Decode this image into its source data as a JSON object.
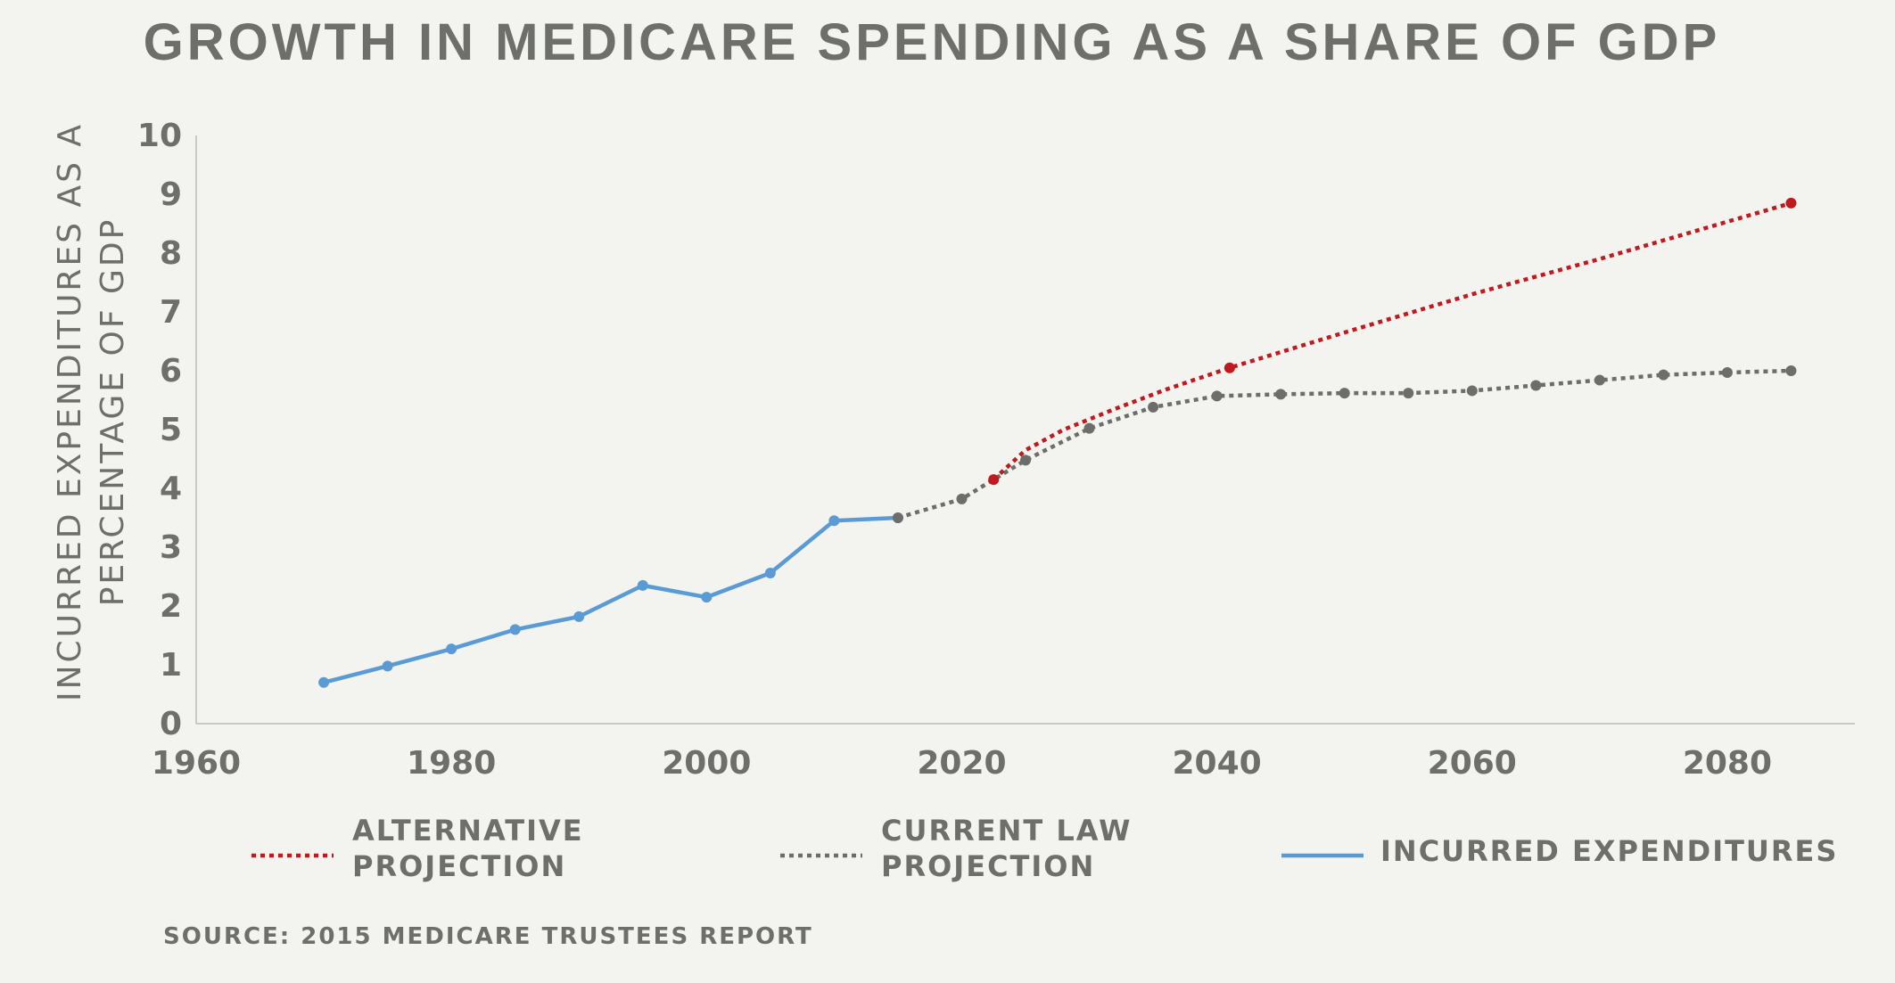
{
  "chart_data": {
    "type": "line",
    "title": "GROWTH IN MEDICARE SPENDING AS A SHARE OF GDP",
    "xlabel": "",
    "ylabel_lines": [
      "INCURRED EXPENDITURES AS A",
      "PERCENTAGE OF GDP"
    ],
    "xlim": [
      1960,
      2090
    ],
    "ylim": [
      0,
      10
    ],
    "x_ticks": [
      1960,
      1980,
      2000,
      2020,
      2040,
      2060,
      2080
    ],
    "y_ticks": [
      0,
      1,
      2,
      3,
      4,
      5,
      6,
      7,
      8,
      9,
      10
    ],
    "grid": false,
    "legend_position": "bottom",
    "series": [
      {
        "name": "INCURRED EXPENDITURES",
        "legend_lines": [
          "INCURRED EXPENDITURES"
        ],
        "style": "solid",
        "color": "#5b9bd5",
        "x": [
          1970,
          1975,
          1980,
          1985,
          1990,
          1995,
          2000,
          2005,
          2010,
          2015
        ],
        "values": [
          0.7,
          0.98,
          1.27,
          1.6,
          1.82,
          2.35,
          2.15,
          2.56,
          3.45,
          3.5
        ],
        "markers": [
          1970,
          1975,
          1980,
          1985,
          1990,
          1995,
          2000,
          2005,
          2010,
          2015
        ]
      },
      {
        "name": "CURRENT LAW PROJECTION",
        "legend_lines": [
          "CURRENT LAW",
          "PROJECTION"
        ],
        "style": "dotted",
        "color": "#6d6d6b",
        "x": [
          2015,
          2020,
          2025,
          2030,
          2035,
          2040,
          2045,
          2050,
          2055,
          2060,
          2065,
          2070,
          2075,
          2080,
          2085
        ],
        "values": [
          3.5,
          3.82,
          4.48,
          5.02,
          5.38,
          5.57,
          5.6,
          5.62,
          5.62,
          5.66,
          5.75,
          5.84,
          5.93,
          5.97,
          6.0
        ],
        "markers": [
          2015,
          2020,
          2025,
          2030,
          2035,
          2040,
          2045,
          2050,
          2055,
          2060,
          2065,
          2070,
          2075,
          2080,
          2085
        ]
      },
      {
        "name": "ALTERNATIVE PROJECTION",
        "legend_lines": [
          "ALTERNATIVE",
          "PROJECTION"
        ],
        "style": "dotted",
        "color": "#c0191e",
        "x": [
          2022.5,
          2025,
          2028,
          2032,
          2036,
          2041,
          2050,
          2060,
          2070,
          2085
        ],
        "values": [
          4.15,
          4.65,
          5.0,
          5.35,
          5.68,
          6.05,
          6.65,
          7.3,
          7.9,
          8.85
        ],
        "markers": [
          2022.5,
          2041,
          2085
        ]
      }
    ]
  },
  "source": "SOURCE: 2015 MEDICARE TRUSTEES REPORT"
}
